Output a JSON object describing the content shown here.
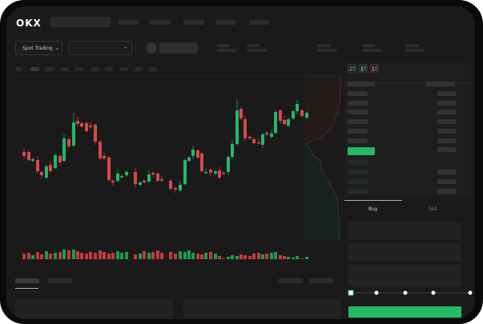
{
  "header": {
    "logo": "OKX"
  },
  "toolbar": {
    "market_select": "Spot Trading",
    "pair_select": ""
  },
  "trade": {
    "tabs": [
      {
        "label": "Buy",
        "active": true
      },
      {
        "label": "Sell",
        "active": false
      }
    ],
    "slider_percent": 0
  },
  "colors": {
    "up": "#25b865",
    "down": "#d9474b",
    "background": "#1a1a1a"
  },
  "icons": [
    "orderbook-both-icon",
    "orderbook-bids-icon",
    "orderbook-asks-icon",
    "line-icon",
    "ruler-icon",
    "camera-icon",
    "settings-icon",
    "fullscreen-icon"
  ]
}
